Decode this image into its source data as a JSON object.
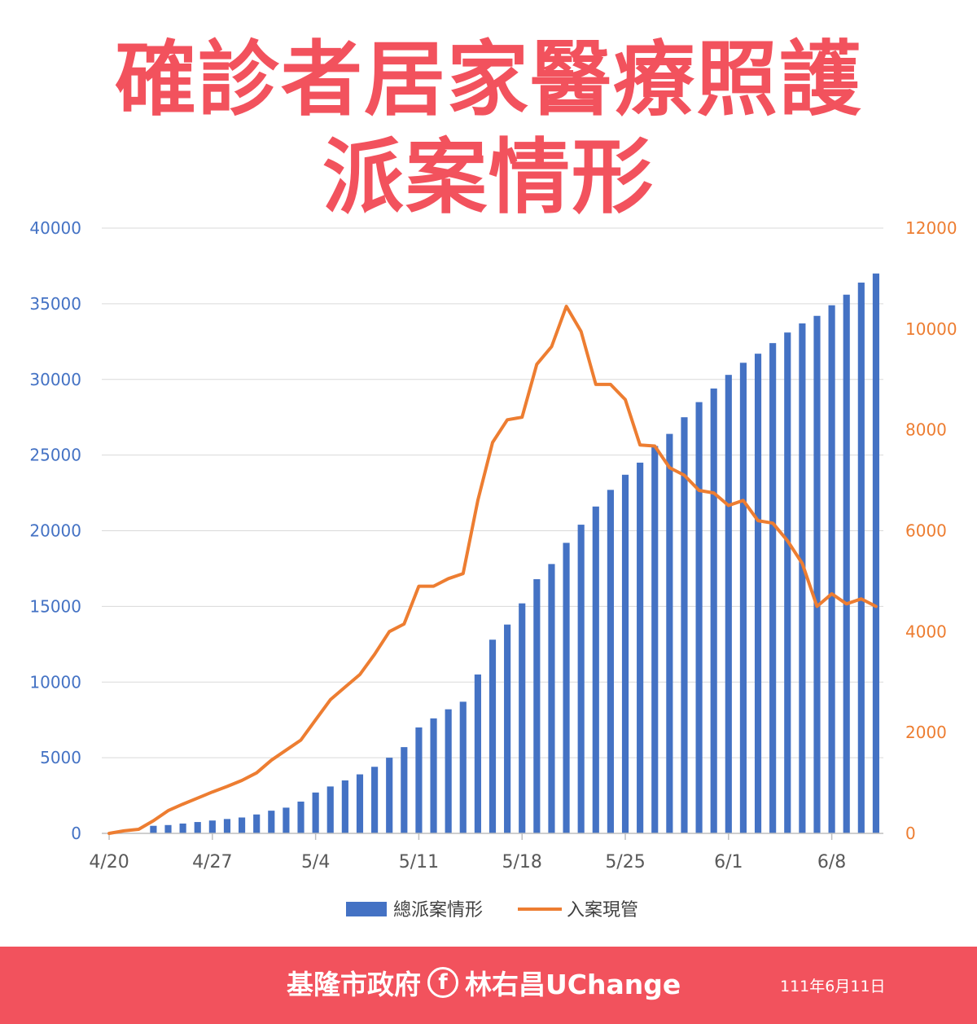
{
  "title": {
    "line1": "確診者居家醫療照護",
    "line2": "派案情形"
  },
  "footer": {
    "org": "基隆市政府",
    "facebook_icon": "f",
    "account": "林右昌UChange",
    "date": "111年6月11日"
  },
  "colors": {
    "title": "#f2525d",
    "footer_bg": "#f2525d",
    "bar": "#4472c4",
    "line": "#ed7d31",
    "left_axis_text": "#4472c4",
    "right_axis_text": "#ed7d31",
    "grid": "#d9d9d9"
  },
  "chart_data": {
    "type": "bar+line",
    "x_tick_labels": [
      "4/20",
      "4/27",
      "5/4",
      "5/11",
      "5/18",
      "5/25",
      "6/1",
      "6/8"
    ],
    "y_left": {
      "ticks": [
        "0",
        "5000",
        "10000",
        "15000",
        "20000",
        "25000",
        "30000",
        "35000",
        "40000"
      ],
      "lim": [
        0,
        40000
      ]
    },
    "y_right": {
      "ticks": [
        "0",
        "2000",
        "4000",
        "6000",
        "8000",
        "10000",
        "12000"
      ],
      "lim": [
        0,
        12000
      ]
    },
    "grid": true,
    "legend_position": "bottom",
    "series": [
      {
        "name": "總派案情形",
        "type": "bar",
        "axis": "left",
        "values": [
          0,
          0,
          0,
          500,
          550,
          650,
          750,
          850,
          950,
          1050,
          1250,
          1500,
          1700,
          2100,
          2700,
          3100,
          3500,
          3900,
          4400,
          5000,
          5700,
          7000,
          7600,
          8200,
          8700,
          10500,
          12800,
          13800,
          15200,
          16800,
          17800,
          19200,
          20400,
          21600,
          22700,
          23700,
          24500,
          25600,
          26400,
          27500,
          28500,
          29400,
          30300,
          31100,
          31700,
          32400,
          33100,
          33700,
          34200,
          34900,
          35600,
          36400,
          37000
        ]
      },
      {
        "name": "入案現管",
        "type": "line",
        "axis": "right",
        "values": [
          0,
          50,
          80,
          250,
          450,
          580,
          700,
          820,
          930,
          1050,
          1200,
          1450,
          1650,
          1850,
          2250,
          2650,
          2900,
          3150,
          3550,
          4000,
          4150,
          4900,
          4900,
          5050,
          5150,
          6600,
          7750,
          8200,
          8250,
          9300,
          9650,
          10450,
          9950,
          8900,
          8900,
          8600,
          7700,
          7680,
          7250,
          7100,
          6800,
          6750,
          6500,
          6600,
          6200,
          6150,
          5800,
          5350,
          4500,
          4750,
          4550,
          4650,
          4500
        ]
      }
    ]
  }
}
